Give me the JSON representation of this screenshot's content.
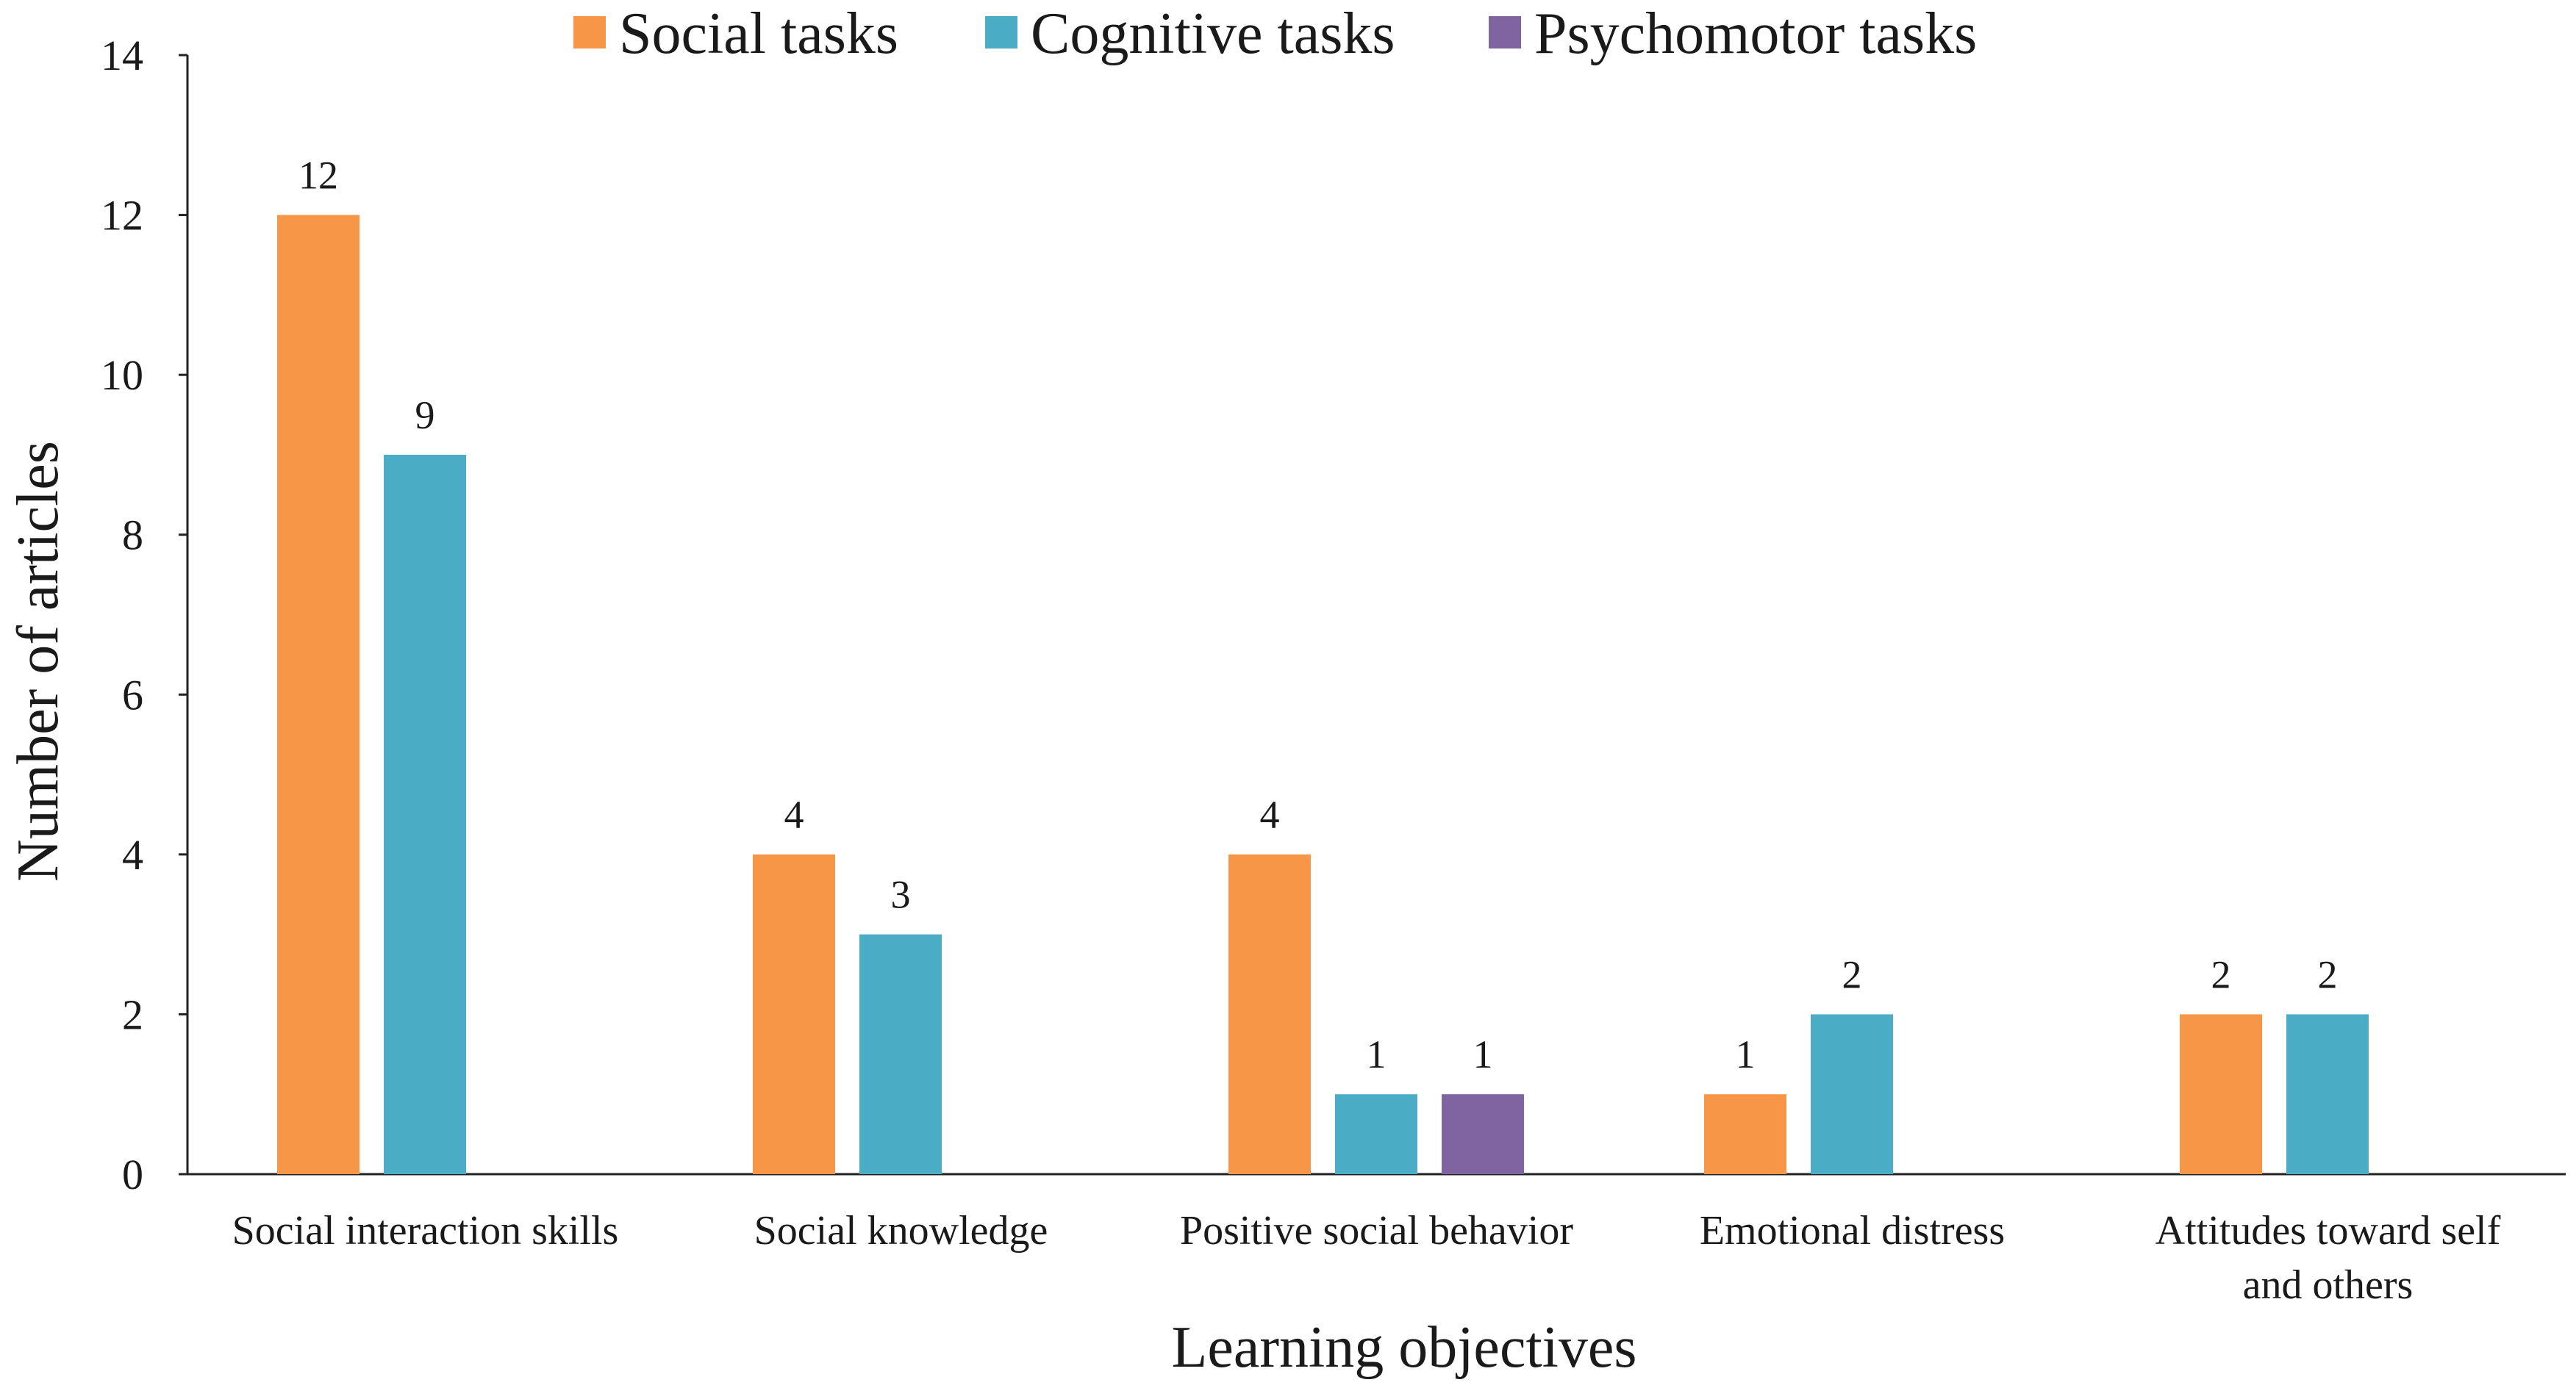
{
  "chart_data": {
    "type": "bar",
    "title": "",
    "xlabel": "Learning objectives",
    "ylabel": "Number of articles",
    "ylim": [
      0,
      14
    ],
    "yticks": [
      0,
      2,
      4,
      6,
      8,
      10,
      12,
      14
    ],
    "grid": false,
    "legend_position": "top-center",
    "categories": [
      [
        "Social interaction skills"
      ],
      [
        "Social knowledge"
      ],
      [
        "Positive social behavior"
      ],
      [
        "Emotional distress"
      ],
      [
        "Attitudes toward self",
        "and others"
      ]
    ],
    "series": [
      {
        "name": "Social tasks",
        "color": "#F79646",
        "values": [
          12,
          4,
          4,
          1,
          2
        ]
      },
      {
        "name": "Cognitive tasks",
        "color": "#4BACC6",
        "values": [
          9,
          3,
          1,
          2,
          2
        ]
      },
      {
        "name": "Psychomotor tasks",
        "color": "#8064A2",
        "values": [
          null,
          null,
          1,
          null,
          null
        ]
      }
    ]
  }
}
